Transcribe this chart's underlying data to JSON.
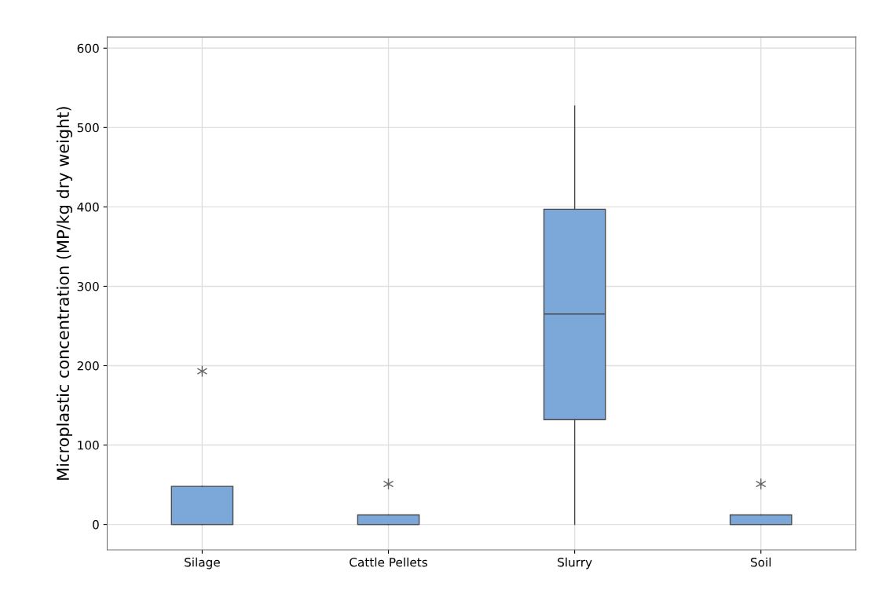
{
  "chart_data": {
    "type": "box",
    "ylabel": "Microplastic concentration (MP/kg dry weight)",
    "categories": [
      "Silage",
      "Cattle Pellets",
      "Slurry",
      "Soil"
    ],
    "boxes": [
      {
        "low": 0,
        "q1": 0,
        "median": 0,
        "q3": 48,
        "high": 48,
        "outliers": [
          193
        ]
      },
      {
        "low": 0,
        "q1": 0,
        "median": 0,
        "q3": 12,
        "high": 12,
        "outliers": [
          51
        ]
      },
      {
        "low": 0,
        "q1": 132,
        "median": 265,
        "q3": 397,
        "high": 527
      },
      {
        "low": 0,
        "q1": 0,
        "median": 0,
        "q3": 12,
        "high": 12,
        "outliers": [
          51
        ]
      }
    ],
    "color": "#7ba7d9",
    "ylim": [
      -32,
      614
    ],
    "yticks": [
      0,
      100,
      200,
      300,
      400,
      500,
      600
    ],
    "grid": true,
    "marker": "star"
  }
}
